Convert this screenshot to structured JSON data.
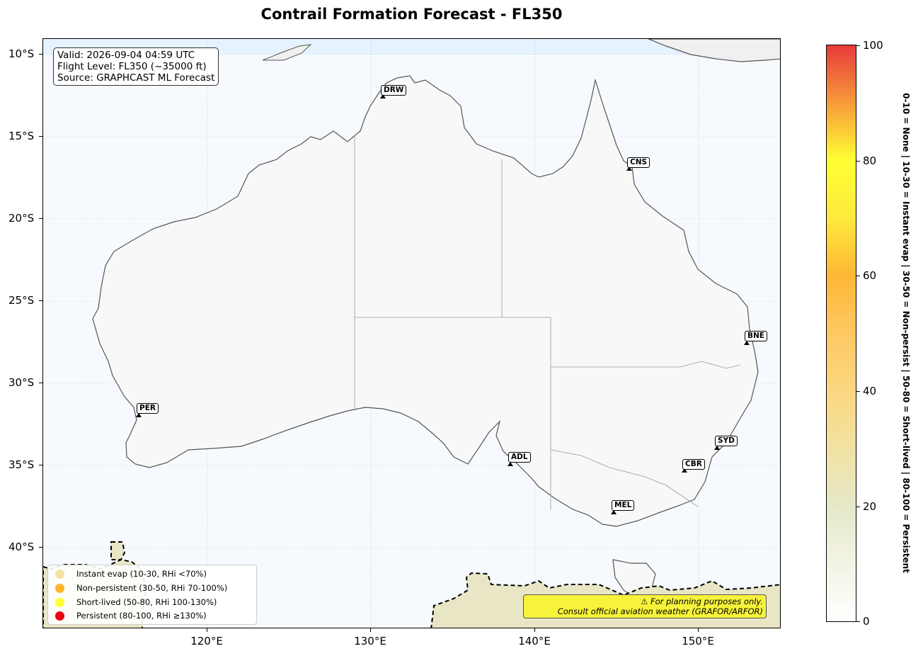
{
  "title": "Contrail Formation Forecast - FL350",
  "info": {
    "valid": "Valid: 2026-09-04 04:59 UTC",
    "flight_level": "Flight Level: FL350 (~35000 ft)",
    "source": "Source: GRAPHCAST ML Forecast"
  },
  "y_axis_ticks": [
    "10°S",
    "15°S",
    "20°S",
    "25°S",
    "30°S",
    "35°S",
    "40°S"
  ],
  "x_axis_ticks": [
    "120°E",
    "130°E",
    "140°E",
    "150°E"
  ],
  "airports": [
    {
      "code": "DRW"
    },
    {
      "code": "CNS"
    },
    {
      "code": "BNE"
    },
    {
      "code": "PER"
    },
    {
      "code": "SYD"
    },
    {
      "code": "ADL"
    },
    {
      "code": "CBR"
    },
    {
      "code": "MEL"
    }
  ],
  "legend": [
    {
      "label": "Instant evap (10-30, RHi <70%)",
      "color": "#f1e2a2"
    },
    {
      "label": "Non-persistent (30-50, RHi 70-100%)",
      "color": "#fdb52a"
    },
    {
      "label": "Short-lived (50-80, RHi 100-130%)",
      "color": "#ffff33"
    },
    {
      "label": "Persistent (80-100, RHi ≥130%)",
      "color": "#e8000b"
    }
  ],
  "warning": {
    "line1": "⚠ For planning purposes only.",
    "line2": "Consult official aviation weather (GRAFOR/ARFOR)"
  },
  "colorbar": {
    "ticks": [
      "0",
      "20",
      "40",
      "60",
      "80",
      "100"
    ],
    "side_label": "0-10 = None  |  10-30 = Instant evap  |  30-50 = Non-persist  |  50-80 = Short-lived  |  80-100 = Persistent"
  },
  "colors": {
    "ocean": "#f6faff",
    "land": "#f8f8f8",
    "coastline": "#555555",
    "contrail_low": "#e8e6c4"
  }
}
